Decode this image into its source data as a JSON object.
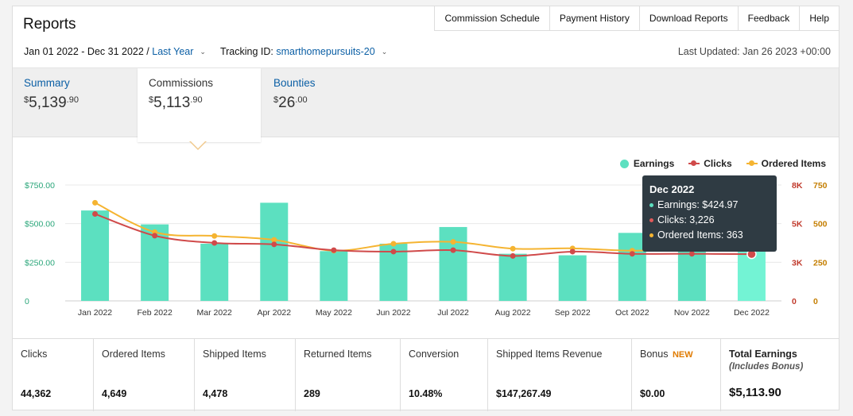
{
  "header": {
    "title": "Reports",
    "nav": [
      "Commission Schedule",
      "Payment History",
      "Download Reports",
      "Feedback",
      "Help"
    ]
  },
  "filters": {
    "date_range": "Jan 01 2022 - Dec 31 2022 /",
    "period_link": "Last Year",
    "tracking_label": "Tracking ID:",
    "tracking_id": "smarthomepursuits-20",
    "last_updated": "Last Updated: Jan 26 2023 +00:00"
  },
  "summary": {
    "tabs": [
      {
        "label": "Summary",
        "dollars": "5,139",
        "cents": ".90",
        "active": false
      },
      {
        "label": "Commissions",
        "dollars": "5,113",
        "cents": ".90",
        "active": true
      },
      {
        "label": "Bounties",
        "dollars": "26",
        "cents": ".00",
        "active": false
      }
    ]
  },
  "legend": {
    "earnings": "Earnings",
    "clicks": "Clicks",
    "ordered": "Ordered Items"
  },
  "colors": {
    "earnings": "#5ce0c0",
    "earnings_highlight": "#73f3d4",
    "clicks": "#d04a4a",
    "ordered": "#f5b431",
    "left_axis": "#2aa67a",
    "clicks_axis": "#c0392b",
    "ordered_axis": "#c47e00",
    "link": "#0b5fa5"
  },
  "chart_data": {
    "type": "bar",
    "categories": [
      "Jan 2022",
      "Feb 2022",
      "Mar 2022",
      "Apr 2022",
      "May 2022",
      "Jun 2022",
      "Jul 2022",
      "Aug 2022",
      "Sep 2022",
      "Oct 2022",
      "Nov 2022",
      "Dec 2022"
    ],
    "series": [
      {
        "name": "Earnings",
        "kind": "bar",
        "axis": "left",
        "values": [
          585,
          495,
          370,
          635,
          322,
          370,
          478,
          305,
          295,
          440,
          365,
          424.97
        ]
      },
      {
        "name": "Clicks",
        "kind": "line",
        "axis": "right1",
        "values": [
          6000,
          4500,
          4000,
          3900,
          3500,
          3400,
          3500,
          3100,
          3400,
          3250,
          3250,
          3226
        ]
      },
      {
        "name": "Ordered Items",
        "kind": "line",
        "axis": "right2",
        "values": [
          635,
          445,
          420,
          395,
          325,
          370,
          382,
          338,
          340,
          325,
          338,
          363
        ]
      }
    ],
    "left_axis": {
      "ticks": [
        "$750.00",
        "$500.00",
        "$250.00",
        "0"
      ],
      "range": [
        0,
        750
      ]
    },
    "right_axis_1": {
      "ticks": [
        "8K",
        "5K",
        "3K",
        "0"
      ],
      "range": [
        0,
        8000
      ]
    },
    "right_axis_2": {
      "ticks": [
        "750",
        "500",
        "250",
        "0"
      ],
      "range": [
        0,
        750
      ]
    },
    "grid": true,
    "legend": "top-right",
    "highlighted_index": 11
  },
  "tooltip": {
    "title": "Dec 2022",
    "earnings": "Earnings: $424.97",
    "clicks": "Clicks: 3,226",
    "ordered": "Ordered Items: 363"
  },
  "totals": [
    {
      "label": "Clicks",
      "value": "44,362"
    },
    {
      "label": "Ordered Items",
      "value": "4,649"
    },
    {
      "label": "Shipped Items",
      "value": "4,478"
    },
    {
      "label": "Returned Items",
      "value": "289"
    },
    {
      "label": "Conversion",
      "value": "10.48%"
    },
    {
      "label": "Shipped Items Revenue",
      "value": "$147,267.49"
    },
    {
      "label": "Bonus",
      "badge": "NEW",
      "value": "$0.00"
    },
    {
      "label": "Total Earnings",
      "sub": "(Includes Bonus)",
      "value": "$5,113.90"
    }
  ]
}
